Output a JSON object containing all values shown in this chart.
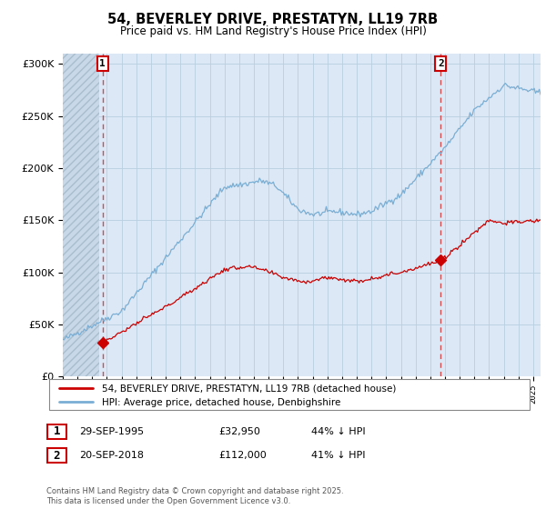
{
  "title_line1": "54, BEVERLEY DRIVE, PRESTATYN, LL19 7RB",
  "title_line2": "Price paid vs. HM Land Registry's House Price Index (HPI)",
  "ylim": [
    0,
    310000
  ],
  "yticks": [
    0,
    50000,
    100000,
    150000,
    200000,
    250000,
    300000
  ],
  "legend_entry1": "54, BEVERLEY DRIVE, PRESTATYN, LL19 7RB (detached house)",
  "legend_entry2": "HPI: Average price, detached house, Denbighshire",
  "annotation1_date": "29-SEP-1995",
  "annotation1_price": "£32,950",
  "annotation1_hpi": "44% ↓ HPI",
  "annotation2_date": "20-SEP-2018",
  "annotation2_price": "£112,000",
  "annotation2_hpi": "41% ↓ HPI",
  "footer": "Contains HM Land Registry data © Crown copyright and database right 2025.\nThis data is licensed under the Open Government Licence v3.0.",
  "hpi_color": "#7aaed4",
  "price_color": "#cc0000",
  "marker_color": "#cc0000",
  "dashed_line_color": "#cc3333",
  "annotation_box_color": "#cc0000",
  "chart_bg_color": "#dce8f5",
  "hatch_color": "#c8d8e8",
  "grid_color": "#b8cfe0",
  "background_color": "#ffffff"
}
